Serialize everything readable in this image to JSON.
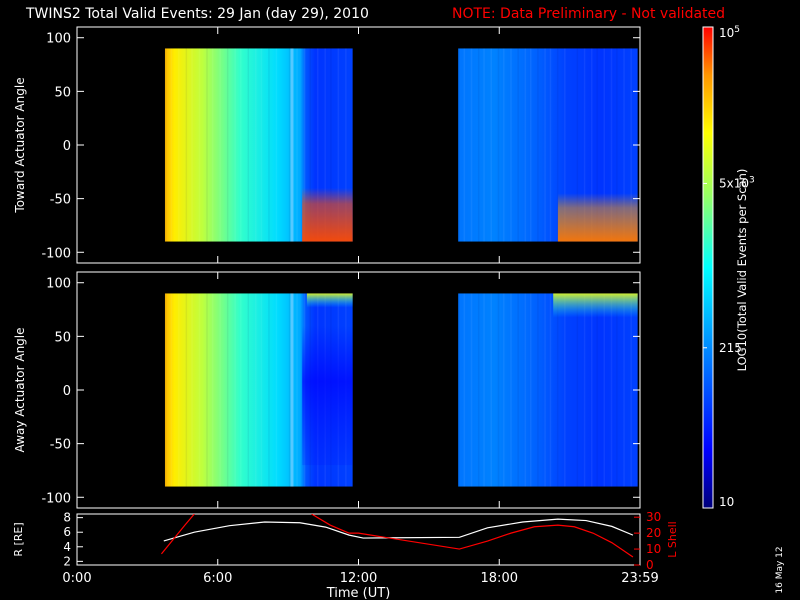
{
  "title": "TWINS2 Total Valid Events: 29 Jan (day  29), 2010",
  "note": "NOTE: Data Preliminary - Not validated",
  "colorbar": {
    "label": "LOG10(Total Valid Events per Scan)",
    "tick_labels": [
      "10",
      "215",
      "5x10^3",
      "10^5"
    ],
    "values": [
      10,
      215,
      5000,
      100000
    ],
    "scale": "log"
  },
  "side_stamp": "16 May 12",
  "colors": {
    "note": "#ff0000",
    "accent_line": "#ff0000",
    "r_line": "#ffffff"
  },
  "chart_data": [
    {
      "type": "heatmap",
      "ylabel": "Toward Actuator Angle",
      "y_ticks": [
        100,
        50,
        0,
        -50,
        -100
      ],
      "ylim": [
        -110,
        110
      ],
      "xlim": [
        0,
        24
      ],
      "data_intervals_ut": [
        [
          3.75,
          11.75
        ],
        [
          16.25,
          23.9
        ]
      ],
      "data_angle_range": [
        -90,
        90
      ],
      "colorscale_log10_range": [
        1,
        5
      ]
    },
    {
      "type": "heatmap",
      "ylabel": "Away Actuator Angle",
      "y_ticks": [
        100,
        50,
        0,
        -50,
        -100
      ],
      "ylim": [
        -110,
        110
      ],
      "xlim": [
        0,
        24
      ],
      "data_intervals_ut": [
        [
          3.75,
          11.75
        ],
        [
          16.25,
          23.9
        ]
      ],
      "data_angle_range": [
        -90,
        90
      ],
      "colorscale_log10_range": [
        1,
        5
      ]
    },
    {
      "type": "line",
      "ylabel": "R [RE]",
      "y2label": "L Shell",
      "y_ticks": [
        "8",
        "6",
        "4",
        "2"
      ],
      "y2_ticks": [
        "30",
        "20",
        "10",
        "0"
      ],
      "ylim": [
        1.5,
        8.5
      ],
      "y2lim": [
        0,
        32
      ],
      "xlabel": "Time (UT)",
      "x_tick_labels": [
        "0:00",
        "6:00",
        "12:00",
        "18:00",
        "23:59"
      ],
      "x_tick_hours": [
        0,
        6,
        12,
        18,
        24
      ],
      "series": [
        {
          "x": [
            3.7,
            5.0,
            6.5,
            8.0,
            9.5,
            10.6,
            11.6,
            12.2,
            16.3,
            17.5,
            19.0,
            20.5,
            21.7,
            22.8,
            23.7
          ],
          "y": [
            4.8,
            6.0,
            6.9,
            7.4,
            7.3,
            6.7,
            5.6,
            5.2,
            5.3,
            6.6,
            7.4,
            7.8,
            7.6,
            6.8,
            5.6
          ]
        },
        {
          "axis": "L Shell",
          "segments": [
            {
              "x": [
                3.6,
                4.6,
                5.0
              ],
              "y": [
                7,
                25,
                32
              ]
            },
            {
              "x": [
                10.0,
                10.8,
                11.6,
                12.0,
                16.3,
                17.5,
                18.5,
                19.5,
                20.5,
                21.2,
                22.0,
                22.8,
                23.7
              ],
              "y": [
                32,
                25,
                20,
                20,
                10,
                15,
                20,
                24,
                25,
                24,
                20,
                14,
                5
              ]
            }
          ]
        }
      ]
    }
  ]
}
